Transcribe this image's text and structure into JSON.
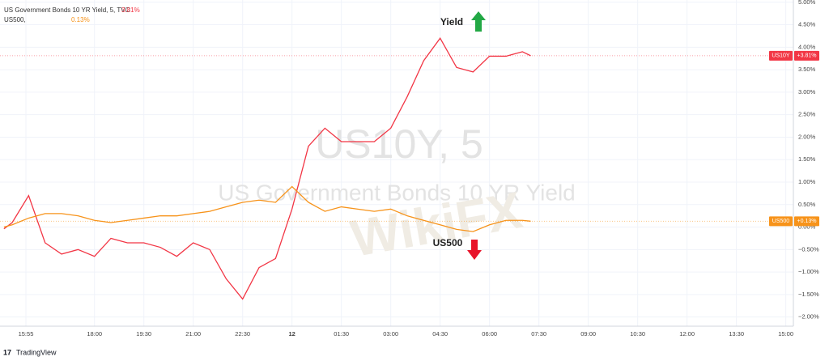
{
  "chart_data": {
    "type": "line",
    "legend_lines": [
      {
        "text": "US Government Bonds 10 YR Yield, 5, TVC",
        "value_label": "3.81%",
        "color": "#f23645"
      },
      {
        "text": "US500,",
        "value_label": "0.13%",
        "color": "#f7931a"
      }
    ],
    "watermark": [
      "US10Y, 5",
      "US Government Bonds 10 YR Yield"
    ],
    "brand_watermark": "WikiFX",
    "annotations": [
      {
        "text": "Yield",
        "direction": "up",
        "color": "#22a845"
      },
      {
        "text": "US500",
        "direction": "down",
        "color": "#e8142a"
      }
    ],
    "footer": "TradingView",
    "x": [
      15.25,
      15.5,
      16.0,
      16.5,
      17.0,
      17.5,
      18.0,
      18.5,
      19.0,
      19.5,
      20.0,
      20.5,
      21.0,
      21.5,
      22.0,
      22.5,
      23.0,
      23.5,
      24.0,
      24.5,
      25.0,
      25.5,
      26.0,
      26.5,
      27.0,
      27.5,
      28.0,
      28.5,
      29.0,
      29.5,
      30.0,
      30.5,
      31.0,
      31.25
    ],
    "series": [
      {
        "name": "US10Y",
        "color": "#f23645",
        "axis_label": "+3.81%",
        "values": [
          -0.04,
          0.1,
          0.7,
          -0.35,
          -0.6,
          -0.5,
          -0.65,
          -0.25,
          -0.35,
          -0.35,
          -0.45,
          -0.65,
          -0.35,
          -0.5,
          -1.15,
          -1.6,
          -0.9,
          -0.7,
          0.4,
          1.8,
          2.2,
          1.9,
          1.9,
          1.9,
          2.2,
          2.9,
          3.7,
          4.2,
          3.55,
          3.45,
          3.8,
          3.8,
          3.9,
          3.81
        ]
      },
      {
        "name": "US500",
        "color": "#f7931a",
        "axis_label": "+0.13%",
        "values": [
          0.0,
          0.05,
          0.2,
          0.3,
          0.3,
          0.25,
          0.15,
          0.1,
          0.15,
          0.2,
          0.25,
          0.25,
          0.3,
          0.35,
          0.45,
          0.55,
          0.6,
          0.55,
          0.9,
          0.55,
          0.35,
          0.45,
          0.4,
          0.35,
          0.4,
          0.25,
          0.15,
          0.05,
          -0.05,
          -0.1,
          0.05,
          0.15,
          0.15,
          0.13
        ]
      }
    ],
    "xlim": [
      15.13,
      39.23
    ],
    "xticks": [
      {
        "value": 15.9167,
        "label": "15:55"
      },
      {
        "value": 18,
        "label": "18:00"
      },
      {
        "value": 19.5,
        "label": "19:30"
      },
      {
        "value": 21,
        "label": "21:00"
      },
      {
        "value": 22.5,
        "label": "22:30"
      },
      {
        "value": 24,
        "label": "12"
      },
      {
        "value": 25.5,
        "label": "01:30"
      },
      {
        "value": 27,
        "label": "03:00"
      },
      {
        "value": 28.5,
        "label": "04:30"
      },
      {
        "value": 30,
        "label": "06:00"
      },
      {
        "value": 31.5,
        "label": "07:30"
      },
      {
        "value": 33,
        "label": "09:00"
      },
      {
        "value": 34.5,
        "label": "10:30"
      },
      {
        "value": 36,
        "label": "12:00"
      },
      {
        "value": 37.5,
        "label": "13:30"
      },
      {
        "value": 39,
        "label": "15:00"
      }
    ],
    "ylim": [
      -2.15,
      5.05
    ],
    "yticks": [
      {
        "value": 5,
        "label": "5.00%"
      },
      {
        "value": 4.5,
        "label": "4.50%"
      },
      {
        "value": 4,
        "label": "4.00%"
      },
      {
        "value": 3.5,
        "label": "3.50%"
      },
      {
        "value": 3,
        "label": "3.00%"
      },
      {
        "value": 2.5,
        "label": "2.50%"
      },
      {
        "value": 2,
        "label": "2.00%"
      },
      {
        "value": 1.5,
        "label": "1.50%"
      },
      {
        "value": 1,
        "label": "1.00%"
      },
      {
        "value": 0.5,
        "label": "0.50%"
      },
      {
        "value": 0,
        "label": "0.00%"
      },
      {
        "value": -0.5,
        "label": "−0.50%"
      },
      {
        "value": -1,
        "label": "−1.00%"
      },
      {
        "value": -1.5,
        "label": "−1.50%"
      },
      {
        "value": -2,
        "label": "−2.00%"
      }
    ],
    "grid": true
  }
}
